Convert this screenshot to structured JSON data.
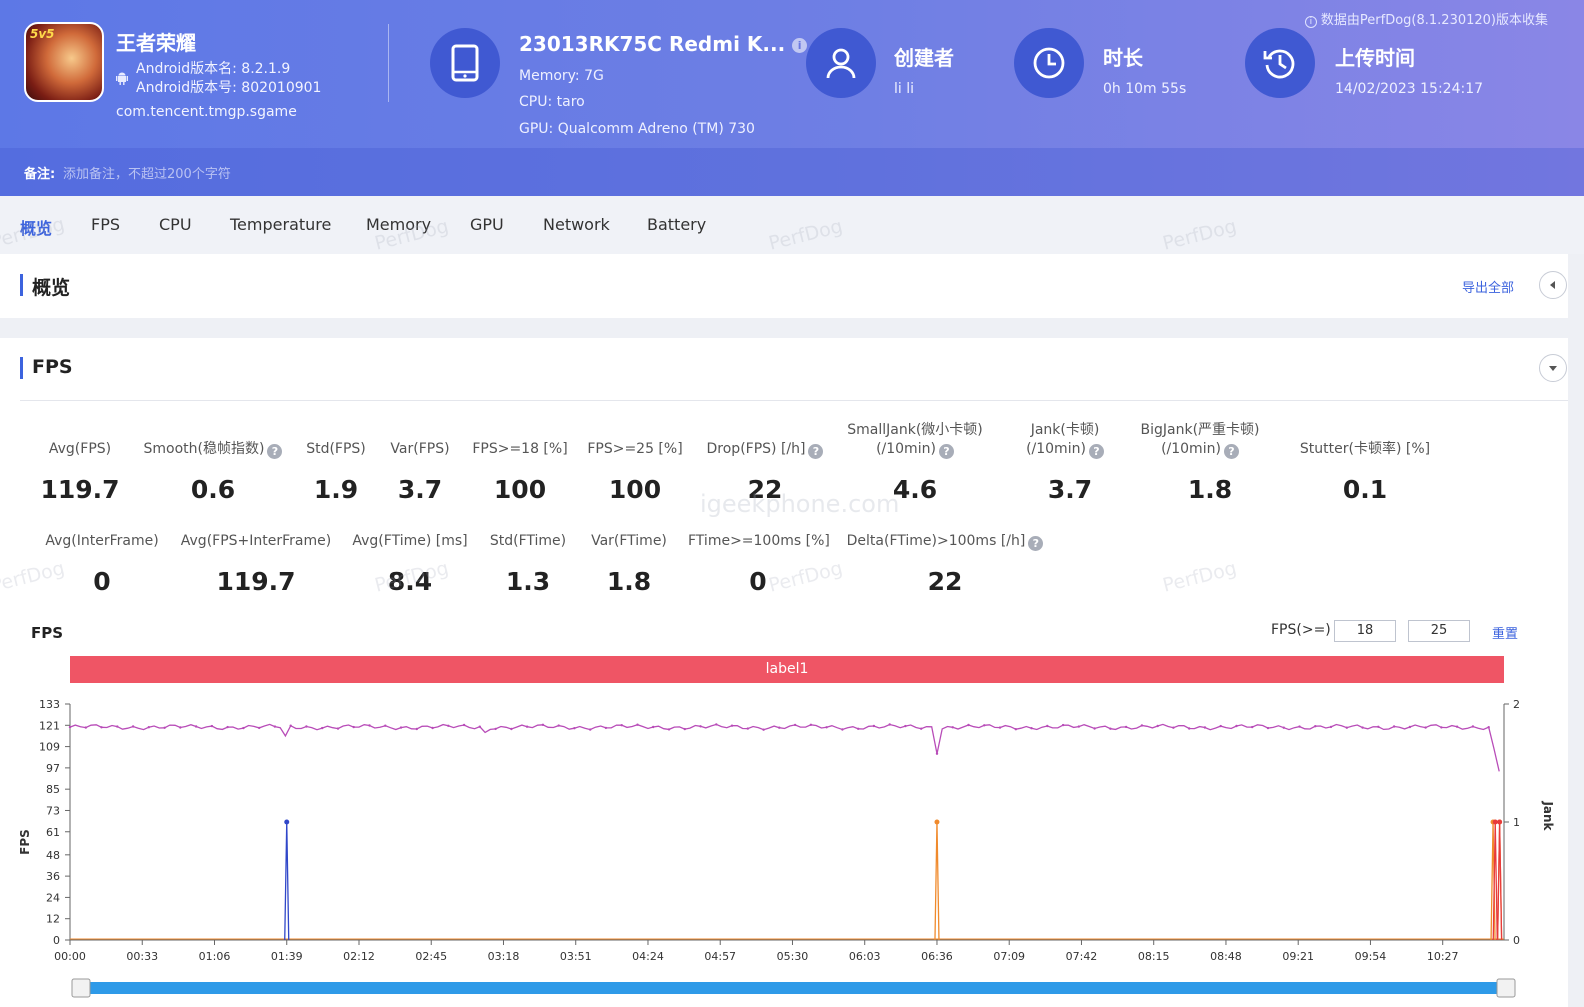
{
  "header": {
    "notice": "数据由PerfDog(8.1.230120)版本收集",
    "app": {
      "icon_badge": "5v5",
      "name": "王者荣耀",
      "version_name": "Android版本名: 8.2.1.9",
      "version_code": "Android版本号: 802010901",
      "package": "com.tencent.tmgp.sgame"
    },
    "device": {
      "title": "23013RK75C Redmi K...",
      "memory": "Memory: 7G",
      "cpu": "CPU: taro",
      "gpu": "GPU: Qualcomm Adreno (TM) 730"
    },
    "creator": {
      "title": "创建者",
      "value": "li li"
    },
    "duration": {
      "title": "时长",
      "value": "0h 10m 55s"
    },
    "upload": {
      "title": "上传时间",
      "value": "14/02/2023 15:24:17"
    },
    "remark": {
      "label": "备注:",
      "placeholder": "添加备注，不超过200个字符"
    }
  },
  "tabs": [
    "概览",
    "FPS",
    "CPU",
    "Temperature",
    "Memory",
    "GPU",
    "Network",
    "Battery"
  ],
  "overview": {
    "title": "概览",
    "export_label": "导出全部"
  },
  "fps_section": {
    "title": "FPS",
    "row1": [
      {
        "label": "Avg(FPS)",
        "value": "119.7"
      },
      {
        "label": "Smooth(稳帧指数)",
        "value": "0.6"
      },
      {
        "label": "Std(FPS)",
        "value": "1.9"
      },
      {
        "label": "Var(FPS)",
        "value": "3.7"
      },
      {
        "label": "FPS>=18 [%]",
        "value": "100"
      },
      {
        "label": "FPS>=25 [%]",
        "value": "100"
      },
      {
        "label": "Drop(FPS) [/h]",
        "value": "22"
      },
      {
        "label": "SmallJank(微小卡顿)",
        "label2": "(/10min)",
        "value": "4.6"
      },
      {
        "label": "Jank(卡顿)",
        "label2": "(/10min)",
        "value": "3.7"
      },
      {
        "label": "BigJank(严重卡顿)",
        "label2": "(/10min)",
        "value": "1.8"
      },
      {
        "label": "Stutter(卡顿率) [%]",
        "value": "0.1"
      }
    ],
    "row2": [
      {
        "label": "Avg(InterFrame)",
        "value": "0"
      },
      {
        "label": "Avg(FPS+InterFrame)",
        "value": "119.7"
      },
      {
        "label": "Avg(FTime) [ms]",
        "value": "8.4"
      },
      {
        "label": "Std(FTime)",
        "value": "1.3"
      },
      {
        "label": "Var(FTime)",
        "value": "1.8"
      },
      {
        "label": "FTime>=100ms [%]",
        "value": "0"
      },
      {
        "label": "Delta(FTime)>100ms [/h]",
        "value": "22"
      }
    ],
    "help_glyph": "?",
    "chart_controls": {
      "title": "FPS",
      "threshold_label": "FPS(>=)",
      "threshold_1": "18",
      "threshold_2": "25",
      "reset_label": "重置"
    },
    "label_bar": "label1"
  },
  "watermarks": {
    "brand": "PerfDog",
    "site": "igeekphone.com"
  },
  "chart_data": {
    "type": "line",
    "title": "FPS",
    "ylabel": "FPS",
    "y2label": "Jank",
    "ylim": [
      0,
      133
    ],
    "y2lim": [
      0,
      2
    ],
    "yticks": [
      0,
      12,
      24,
      36,
      48,
      61,
      73,
      85,
      97,
      109,
      121,
      133
    ],
    "y2ticks": [
      0,
      1,
      2
    ],
    "xlim": [
      "00:00",
      "10:55"
    ],
    "xticks": [
      "00:00",
      "00:33",
      "01:06",
      "01:39",
      "02:12",
      "02:45",
      "03:18",
      "03:51",
      "04:24",
      "04:57",
      "05:30",
      "06:03",
      "06:36",
      "07:09",
      "07:42",
      "08:15",
      "08:48",
      "09:21",
      "09:54",
      "10:27"
    ],
    "series": [
      {
        "name": "FPS",
        "color": "#b84cb8",
        "baseline": 120,
        "dips": [
          {
            "t": "01:39",
            "v": 115
          },
          {
            "t": "03:10",
            "v": 117
          },
          {
            "t": "06:36",
            "v": 105
          },
          {
            "t": "10:50",
            "v": 108
          },
          {
            "t": "10:53",
            "v": 95
          }
        ]
      },
      {
        "color": "#3047c9",
        "spikes": [
          {
            "t": "01:39",
            "v": 1
          }
        ]
      },
      {
        "color": "#f08a2c",
        "spikes": [
          {
            "t": "06:36",
            "v": 1
          },
          {
            "t": "10:50",
            "v": 1
          },
          {
            "t": "10:53",
            "v": 1
          }
        ]
      },
      {
        "color": "#e83b3b",
        "spikes": [
          {
            "t": "10:51",
            "v": 1
          },
          {
            "t": "10:53",
            "v": 1
          }
        ]
      }
    ],
    "grid": false
  }
}
